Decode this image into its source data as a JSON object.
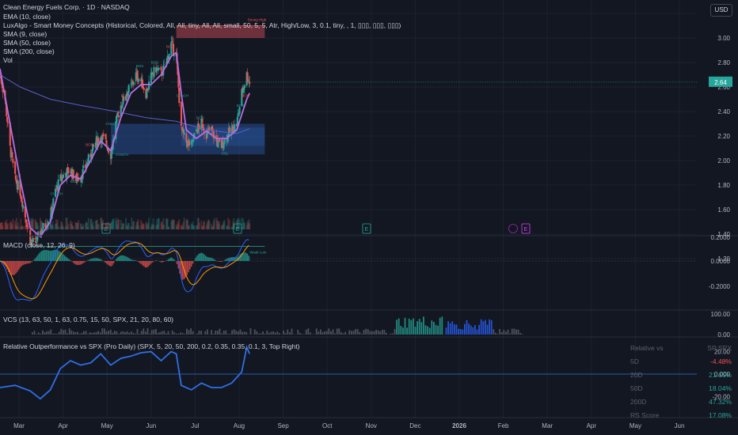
{
  "header": {
    "symbol_line": "Clean Energy Fuels Corp. · 1D · NASDAQ",
    "indicators": [
      "EMA (10, close)",
      "LuxAlgo - Smart Money Concepts (Historical, Colored, All, All, tiny, All, All, small, 50, 5, 5, Atr, High/Low, 3, 0.1, tiny, , 1, ▯▯▯, ▯▯▯, ▯▯▯)",
      "SMA (9, close)",
      "SMA (50, close)",
      "SMA (200, close)",
      "Vol"
    ],
    "currency_button": "USD"
  },
  "price_axis": {
    "ticks": [
      "3.20",
      "3.00",
      "2.80",
      "2.60",
      "2.40",
      "2.20",
      "2.00",
      "1.80",
      "1.60",
      "1.40",
      "1.20"
    ],
    "last_price": "2.64"
  },
  "smc_labels": {
    "strong_high": "Strong High",
    "weak_low": "Weak Low",
    "tags": [
      "CHoCH",
      "BOS",
      "BOS",
      "CHoCH",
      "CHoCH",
      "BOS",
      "BOS",
      "BOS",
      "BOS",
      "CHoCH",
      "BOS",
      "BOS",
      "SSL",
      "BOS",
      "BOS"
    ]
  },
  "earnings_markers": [
    "E",
    "E",
    "E",
    "E"
  ],
  "macd": {
    "label": "MACD (close, 12, 26, 9)",
    "ticks": [
      "0.2000",
      "0.0000",
      "-0.2000"
    ]
  },
  "vcs": {
    "label": "VCS (13, 63, 50, 1, 63, 0.75, 15, 50, SPX, 21, 20, 80, 60)",
    "ticks": [
      "100.00",
      "0.00"
    ]
  },
  "rel": {
    "label": "Relative Outperformance vs SPX (Pro Daily) (SPX, 5, 20, 50, 200, 0.2, 0.35, 0.35, 0.1, 3, Top Right)",
    "ticks": [
      "20.00",
      "0.000",
      "-20.00"
    ],
    "table": {
      "headers": [
        "Relative vs",
        "SP:SPX"
      ],
      "rows": [
        {
          "label": "5D",
          "value": "-4.48%",
          "color": "#ef5350"
        },
        {
          "label": "20D",
          "value": "21.65%",
          "color": "#26a69a"
        },
        {
          "label": "50D",
          "value": "18.04%",
          "color": "#26a69a"
        },
        {
          "label": "200D",
          "value": "47.32%",
          "color": "#26a69a"
        },
        {
          "label": "RS Score",
          "value": "17.08%",
          "color": "#26a69a"
        }
      ]
    }
  },
  "time_axis": [
    "Mar",
    "Apr",
    "May",
    "Jun",
    "Jul",
    "Aug",
    "Sep",
    "Oct",
    "Nov",
    "Dec",
    "2026",
    "Feb",
    "Mar",
    "Apr",
    "May",
    "Jun"
  ],
  "colors": {
    "background": "#131722",
    "up": "#26a69a",
    "down": "#ef5350",
    "ema": "#b86ee6",
    "sma_long": "#5b5fc7",
    "supply_zone": "#8e3b46",
    "demand_zone": "#2a5ca8",
    "macd_line": "#2962ff",
    "signal_line": "#ff9800",
    "rel_line": "#2f6fe4"
  },
  "chart_data": {
    "type": "candlestick",
    "symbol": "Clean Energy Fuels Corp.",
    "interval": "1D",
    "exchange": "NASDAQ",
    "currency": "USD",
    "price_ylim": [
      1.15,
      3.22
    ],
    "last_price": 2.64,
    "price_path": [
      {
        "date": "2025-02-24",
        "close": 2.7
      },
      {
        "date": "2025-03-03",
        "close": 2.5
      },
      {
        "date": "2025-03-10",
        "close": 2.1
      },
      {
        "date": "2025-03-17",
        "close": 1.85
      },
      {
        "date": "2025-03-24",
        "close": 1.75
      },
      {
        "date": "2025-03-31",
        "close": 1.55
      },
      {
        "date": "2025-04-07",
        "close": 1.35
      },
      {
        "date": "2025-04-14",
        "close": 1.32
      },
      {
        "date": "2025-04-21",
        "close": 1.42
      },
      {
        "date": "2025-04-28",
        "close": 1.48
      },
      {
        "date": "2025-05-05",
        "close": 1.55
      },
      {
        "date": "2025-05-12",
        "close": 1.75
      },
      {
        "date": "2025-05-19",
        "close": 1.85
      },
      {
        "date": "2025-05-26",
        "close": 1.9
      },
      {
        "date": "2025-06-02",
        "close": 1.92
      },
      {
        "date": "2025-06-09",
        "close": 1.85
      },
      {
        "date": "2025-06-16",
        "close": 1.87
      },
      {
        "date": "2025-06-23",
        "close": 1.95
      },
      {
        "date": "2025-06-30",
        "close": 2.05
      },
      {
        "date": "2025-07-07",
        "close": 2.15
      },
      {
        "date": "2025-07-14",
        "close": 2.2
      },
      {
        "date": "2025-07-21",
        "close": 2.15
      },
      {
        "date": "2025-07-28",
        "close": 2.05
      },
      {
        "date": "2025-08-04",
        "close": 2.3
      },
      {
        "date": "2025-08-11",
        "close": 2.45
      },
      {
        "date": "2025-08-18",
        "close": 2.55
      },
      {
        "date": "2025-08-25",
        "close": 2.6
      },
      {
        "date": "2025-09-01",
        "close": 2.7
      },
      {
        "date": "2025-09-08",
        "close": 2.65
      },
      {
        "date": "2025-09-15",
        "close": 2.55
      },
      {
        "date": "2025-09-22",
        "close": 2.68
      },
      {
        "date": "2025-09-29",
        "close": 2.75
      },
      {
        "date": "2025-10-06",
        "close": 2.7
      },
      {
        "date": "2025-10-13",
        "close": 2.8
      },
      {
        "date": "2025-10-20",
        "close": 2.95
      },
      {
        "date": "2025-10-27",
        "close": 2.85
      },
      {
        "date": "2025-11-03",
        "close": 2.25
      },
      {
        "date": "2025-11-10",
        "close": 2.15
      },
      {
        "date": "2025-11-17",
        "close": 2.12
      },
      {
        "date": "2025-11-24",
        "close": 2.25
      },
      {
        "date": "2025-12-01",
        "close": 2.3
      },
      {
        "date": "2025-12-08",
        "close": 2.22
      },
      {
        "date": "2025-12-15",
        "close": 2.25
      },
      {
        "date": "2025-12-22",
        "close": 2.15
      },
      {
        "date": "2025-12-29",
        "close": 2.12
      },
      {
        "date": "2026-01-05",
        "close": 2.2
      },
      {
        "date": "2026-01-12",
        "close": 2.25
      },
      {
        "date": "2026-01-19",
        "close": 2.3
      },
      {
        "date": "2026-01-26",
        "close": 2.55
      },
      {
        "date": "2026-02-02",
        "close": 2.7
      },
      {
        "date": "2026-02-06",
        "close": 2.64
      }
    ],
    "ema10_path": [
      {
        "date": "2025-02-24",
        "value": 2.75
      },
      {
        "date": "2025-03-10",
        "value": 2.3
      },
      {
        "date": "2025-03-24",
        "value": 1.85
      },
      {
        "date": "2025-04-07",
        "value": 1.45
      },
      {
        "date": "2025-04-21",
        "value": 1.38
      },
      {
        "date": "2025-05-05",
        "value": 1.5
      },
      {
        "date": "2025-05-19",
        "value": 1.8
      },
      {
        "date": "2025-06-02",
        "value": 1.88
      },
      {
        "date": "2025-06-16",
        "value": 1.85
      },
      {
        "date": "2025-06-30",
        "value": 2.0
      },
      {
        "date": "2025-07-14",
        "value": 2.16
      },
      {
        "date": "2025-07-28",
        "value": 2.08
      },
      {
        "date": "2025-08-11",
        "value": 2.35
      },
      {
        "date": "2025-08-25",
        "value": 2.55
      },
      {
        "date": "2025-09-08",
        "value": 2.62
      },
      {
        "date": "2025-09-22",
        "value": 2.62
      },
      {
        "date": "2025-10-06",
        "value": 2.7
      },
      {
        "date": "2025-10-20",
        "value": 2.85
      },
      {
        "date": "2025-10-27",
        "value": 2.88
      },
      {
        "date": "2025-11-03",
        "value": 2.55
      },
      {
        "date": "2025-11-10",
        "value": 2.25
      },
      {
        "date": "2025-11-24",
        "value": 2.18
      },
      {
        "date": "2025-12-08",
        "value": 2.24
      },
      {
        "date": "2025-12-22",
        "value": 2.18
      },
      {
        "date": "2026-01-05",
        "value": 2.18
      },
      {
        "date": "2026-01-19",
        "value": 2.25
      },
      {
        "date": "2026-02-02",
        "value": 2.5
      },
      {
        "date": "2026-02-06",
        "value": 2.55
      }
    ],
    "sma_long_path": [
      {
        "date": "2025-02-24",
        "value": 2.7
      },
      {
        "date": "2025-03-24",
        "value": 2.6
      },
      {
        "date": "2025-05-05",
        "value": 2.5
      },
      {
        "date": "2025-06-16",
        "value": 2.45
      },
      {
        "date": "2025-08-04",
        "value": 2.4
      },
      {
        "date": "2025-09-15",
        "value": 2.35
      },
      {
        "date": "2025-10-27",
        "value": 2.32
      },
      {
        "date": "2025-12-08",
        "value": 2.25
      },
      {
        "date": "2026-01-19",
        "value": 2.22
      },
      {
        "date": "2026-02-06",
        "value": 2.26
      }
    ],
    "supply_zone": {
      "from": "2025-10-27",
      "to": "2026-02-27",
      "low": 3.0,
      "high": 3.1
    },
    "demand_zone": {
      "from": "2025-07-28",
      "to": "2026-02-27",
      "low": 2.05,
      "high": 2.3
    },
    "strong_high": 3.1,
    "weak_low": 1.3,
    "rel_path": [
      {
        "date": "2025-02-24",
        "value": -12
      },
      {
        "date": "2025-03-17",
        "value": -10
      },
      {
        "date": "2025-04-07",
        "value": -15
      },
      {
        "date": "2025-04-21",
        "value": -22
      },
      {
        "date": "2025-05-05",
        "value": -14
      },
      {
        "date": "2025-05-19",
        "value": 5
      },
      {
        "date": "2025-06-02",
        "value": 12
      },
      {
        "date": "2025-06-16",
        "value": 8
      },
      {
        "date": "2025-06-30",
        "value": 10
      },
      {
        "date": "2025-07-14",
        "value": 18
      },
      {
        "date": "2025-07-28",
        "value": 8
      },
      {
        "date": "2025-08-11",
        "value": 14
      },
      {
        "date": "2025-08-25",
        "value": 16
      },
      {
        "date": "2025-09-08",
        "value": 19
      },
      {
        "date": "2025-09-22",
        "value": 20
      },
      {
        "date": "2025-10-06",
        "value": 12
      },
      {
        "date": "2025-10-20",
        "value": 20
      },
      {
        "date": "2025-10-27",
        "value": 18
      },
      {
        "date": "2025-11-03",
        "value": -10
      },
      {
        "date": "2025-11-17",
        "value": -14
      },
      {
        "date": "2025-12-01",
        "value": -8
      },
      {
        "date": "2025-12-15",
        "value": -12
      },
      {
        "date": "2025-12-29",
        "value": -12
      },
      {
        "date": "2026-01-12",
        "value": -8
      },
      {
        "date": "2026-01-26",
        "value": 2
      },
      {
        "date": "2026-02-02",
        "value": 24
      },
      {
        "date": "2026-02-06",
        "value": 18
      }
    ],
    "rel_ylim": [
      -30,
      30
    ]
  }
}
